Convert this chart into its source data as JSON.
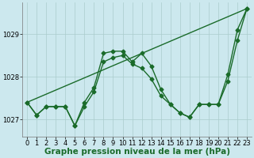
{
  "background_color": "#cce8ee",
  "grid_color": "#aacccc",
  "line_color": "#1a6b2a",
  "xlabel": "Graphe pression niveau de la mer (hPa)",
  "xlabel_fontsize": 7.5,
  "ylim": [
    1026.6,
    1029.75
  ],
  "xlim": [
    -0.5,
    23.5
  ],
  "yticks": [
    1027,
    1028,
    1029
  ],
  "xticks": [
    0,
    1,
    2,
    3,
    4,
    5,
    6,
    7,
    8,
    9,
    10,
    11,
    12,
    13,
    14,
    15,
    16,
    17,
    18,
    19,
    20,
    21,
    22,
    23
  ],
  "series": [
    {
      "x": [
        0,
        23
      ],
      "y": [
        1027.4,
        1029.6
      ],
      "has_markers": false
    },
    {
      "x": [
        0,
        1,
        2,
        3,
        4,
        5,
        6,
        7,
        8,
        9,
        10,
        11,
        12,
        13,
        14,
        15,
        16,
        17,
        18,
        19,
        20,
        21,
        22,
        23
      ],
      "y": [
        1027.4,
        1027.1,
        1027.3,
        1027.3,
        1027.3,
        1026.85,
        1027.4,
        1027.75,
        1028.55,
        1028.6,
        1028.6,
        1028.35,
        1028.55,
        1028.25,
        1027.7,
        1027.35,
        1027.15,
        1027.05,
        1027.35,
        1027.35,
        1027.35,
        1028.05,
        1029.1,
        1029.6
      ],
      "has_markers": true
    },
    {
      "x": [
        0,
        1,
        2,
        3,
        4,
        5,
        6,
        7,
        8,
        9,
        10,
        11,
        12,
        13,
        14,
        15,
        16,
        17,
        18,
        19,
        20,
        21,
        22,
        23
      ],
      "y": [
        1027.4,
        1027.1,
        1027.3,
        1027.3,
        1027.3,
        1026.85,
        1027.3,
        1027.65,
        1028.35,
        1028.45,
        1028.5,
        1028.3,
        1028.2,
        1027.95,
        1027.55,
        1027.35,
        1027.15,
        1027.05,
        1027.35,
        1027.35,
        1027.35,
        1027.9,
        1028.85,
        1029.6
      ],
      "has_markers": true
    }
  ],
  "marker_size": 2.5,
  "line_width": 1.0,
  "tick_fontsize": 6,
  "marker": "D"
}
